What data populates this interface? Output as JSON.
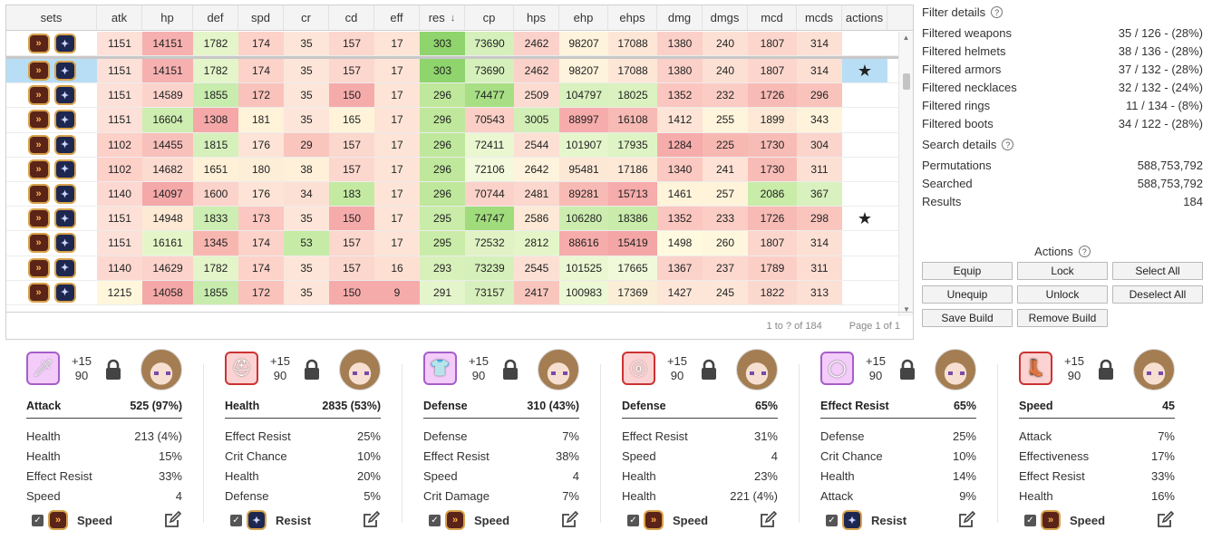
{
  "table": {
    "columns": [
      {
        "key": "sets",
        "label": "sets",
        "w": 100
      },
      {
        "key": "atk",
        "label": "atk",
        "w": 50
      },
      {
        "key": "hp",
        "label": "hp",
        "w": 56
      },
      {
        "key": "def",
        "label": "def",
        "w": 50
      },
      {
        "key": "spd",
        "label": "spd",
        "w": 50
      },
      {
        "key": "cr",
        "label": "cr",
        "w": 50
      },
      {
        "key": "cd",
        "label": "cd",
        "w": 50
      },
      {
        "key": "eff",
        "label": "eff",
        "w": 50
      },
      {
        "key": "res",
        "label": "res",
        "w": 50
      },
      {
        "key": "cp",
        "label": "cp",
        "w": 54
      },
      {
        "key": "hps",
        "label": "hps",
        "w": 50
      },
      {
        "key": "ehp",
        "label": "ehp",
        "w": 54
      },
      {
        "key": "ehps",
        "label": "ehps",
        "w": 54
      },
      {
        "key": "dmg",
        "label": "dmg",
        "w": 50
      },
      {
        "key": "dmgs",
        "label": "dmgs",
        "w": 50
      },
      {
        "key": "mcd",
        "label": "mcd",
        "w": 54
      },
      {
        "key": "mcds",
        "label": "mcds",
        "w": 50
      },
      {
        "key": "actions",
        "label": "actions",
        "w": 50
      }
    ],
    "sort_icon": "sort-down-arrow-icon",
    "rows": [
      {
        "vals": [
          "1151",
          "14151",
          "1782",
          "174",
          "35",
          "157",
          "17",
          "303",
          "73690",
          "2462",
          "98207",
          "17088",
          "1380",
          "240",
          "1807",
          "314"
        ],
        "star": false,
        "selected": false
      },
      {
        "vals": [
          "1151",
          "14151",
          "1782",
          "174",
          "35",
          "157",
          "17",
          "303",
          "73690",
          "2462",
          "98207",
          "17088",
          "1380",
          "240",
          "1807",
          "314"
        ],
        "star": true,
        "selected": true
      },
      {
        "vals": [
          "1151",
          "14589",
          "1855",
          "172",
          "35",
          "150",
          "17",
          "296",
          "74477",
          "2509",
          "104797",
          "18025",
          "1352",
          "232",
          "1726",
          "296"
        ],
        "star": false,
        "selected": false
      },
      {
        "vals": [
          "1151",
          "16604",
          "1308",
          "181",
          "35",
          "165",
          "17",
          "296",
          "70543",
          "3005",
          "88997",
          "16108",
          "1412",
          "255",
          "1899",
          "343"
        ],
        "star": false,
        "selected": false
      },
      {
        "vals": [
          "1102",
          "14455",
          "1815",
          "176",
          "29",
          "157",
          "17",
          "296",
          "72411",
          "2544",
          "101907",
          "17935",
          "1284",
          "225",
          "1730",
          "304"
        ],
        "star": false,
        "selected": false
      },
      {
        "vals": [
          "1102",
          "14682",
          "1651",
          "180",
          "38",
          "157",
          "17",
          "296",
          "72106",
          "2642",
          "95481",
          "17186",
          "1340",
          "241",
          "1730",
          "311"
        ],
        "star": false,
        "selected": false
      },
      {
        "vals": [
          "1140",
          "14097",
          "1600",
          "176",
          "34",
          "183",
          "17",
          "296",
          "70744",
          "2481",
          "89281",
          "15713",
          "1461",
          "257",
          "2086",
          "367"
        ],
        "star": false,
        "selected": false
      },
      {
        "vals": [
          "1151",
          "14948",
          "1833",
          "173",
          "35",
          "150",
          "17",
          "295",
          "74747",
          "2586",
          "106280",
          "18386",
          "1352",
          "233",
          "1726",
          "298"
        ],
        "star": true,
        "selected": false
      },
      {
        "vals": [
          "1151",
          "16161",
          "1345",
          "174",
          "53",
          "157",
          "17",
          "295",
          "72532",
          "2812",
          "88616",
          "15419",
          "1498",
          "260",
          "1807",
          "314"
        ],
        "star": false,
        "selected": false
      },
      {
        "vals": [
          "1140",
          "14629",
          "1782",
          "174",
          "35",
          "157",
          "16",
          "293",
          "73239",
          "2545",
          "101525",
          "17665",
          "1367",
          "237",
          "1789",
          "311"
        ],
        "star": false,
        "selected": false
      },
      {
        "vals": [
          "1215",
          "14058",
          "1855",
          "172",
          "35",
          "150",
          "9",
          "291",
          "73157",
          "2417",
          "100983",
          "17369",
          "1427",
          "245",
          "1822",
          "313"
        ],
        "star": false,
        "selected": false
      }
    ],
    "colors": {
      "atk": [
        "#fde0d8",
        "#fde0d8",
        "#fde0d8",
        "#fde0d8",
        "#fdd0c8",
        "#fdd0c8",
        "#fdd8d0",
        "#fde0d8",
        "#fde0d8",
        "#fdd8d0",
        "#fff6dc"
      ],
      "hp": [
        "#f6b0b0",
        "#f6b0b0",
        "#fcd3cb",
        "#cdeeb0",
        "#f8c0ba",
        "#fcdbd0",
        "#f4a8a8",
        "#fde9d4",
        "#e4f6c8",
        "#fcd3cb",
        "#f4a8a8"
      ],
      "def": [
        "#e3f5c9",
        "#e3f5c9",
        "#c8ecae",
        "#f6a8a8",
        "#d5f0bb",
        "#fff1d8",
        "#fbd3ca",
        "#cdeeb2",
        "#f8b6b0",
        "#e3f5c9",
        "#c8ecae"
      ],
      "spd": [
        "#fcd2c9",
        "#fcd2c9",
        "#f9c2bb",
        "#fff3da",
        "#fde4d6",
        "#fdeed8",
        "#fde4d6",
        "#fbc7c0",
        "#fcd2c9",
        "#fcd2c9",
        "#f9c2bb"
      ],
      "cr": [
        "#fde6d9",
        "#fde6d9",
        "#fde6d9",
        "#fde6d9",
        "#f9c5bd",
        "#fff0da",
        "#fde0d4",
        "#fde6d9",
        "#c6eba6",
        "#fde6d9",
        "#fde6d9"
      ],
      "cd": [
        "#fcd7cd",
        "#fcd7cd",
        "#f6abab",
        "#fff4da",
        "#fcd7cd",
        "#fcd7cd",
        "#c4eaa2",
        "#f6abab",
        "#fcd7cd",
        "#fcd7cd",
        "#f6abab"
      ],
      "eff": [
        "#fde4d6",
        "#fde4d6",
        "#fde4d6",
        "#fde4d6",
        "#fde4d6",
        "#fde4d6",
        "#fde4d6",
        "#fde4d6",
        "#fde4d6",
        "#fde0d2",
        "#f6abab"
      ],
      "res": [
        "#8fd46c",
        "#8fd46c",
        "#bfe89c",
        "#bfe89c",
        "#bfe89c",
        "#bfe89c",
        "#bfe89c",
        "#c9eca8",
        "#c9eca8",
        "#d8f1bb",
        "#e4f5cc"
      ],
      "cp": [
        "#d6f0bb",
        "#d6f0bb",
        "#a8df84",
        "#fbcfc6",
        "#eaf7d1",
        "#f2f9dd",
        "#fbd2c9",
        "#a0dc7c",
        "#e1f3c5",
        "#d6f0bb",
        "#d8f0bd"
      ],
      "hps": [
        "#fbd2ca",
        "#fbd2ca",
        "#fcdbd0",
        "#d2efb6",
        "#fde0d4",
        "#fef3dc",
        "#fbd7cd",
        "#fde9d6",
        "#e4f5c8",
        "#fde0d4",
        "#f9c6be"
      ],
      "ehp": [
        "#fef3dc",
        "#fef3dc",
        "#d9f1be",
        "#f6acab",
        "#e6f6cc",
        "#fde8d6",
        "#f8bab4",
        "#cdedb0",
        "#f6acab",
        "#eaf7d1",
        "#ecf8d4"
      ],
      "ehps": [
        "#fde6d6",
        "#fde6d6",
        "#dbf2c0",
        "#f8bab4",
        "#dff4c4",
        "#fde9d6",
        "#f6acab",
        "#c9ecaa",
        "#f4a6a6",
        "#f0f9d9",
        "#fbeed6"
      ],
      "dmg": [
        "#fbd0c8",
        "#fbd0c8",
        "#fbc6bf",
        "#fde4d6",
        "#f6acab",
        "#fbc9c1",
        "#fff3da",
        "#fbc6bf",
        "#fffadf",
        "#fbd2ca",
        "#fde6d8"
      ],
      "dmgs": [
        "#fde0d4",
        "#fde0d4",
        "#fbccc4",
        "#fff5dc",
        "#f8b8b2",
        "#fde2d5",
        "#fff3da",
        "#fbcdc4",
        "#fef7dd",
        "#fdd8ce",
        "#fde6d8"
      ],
      "mcd": [
        "#fcd6cc",
        "#fcd6cc",
        "#f8bab4",
        "#fde9d6",
        "#f8bcb6",
        "#f8bcb6",
        "#c9eca8",
        "#f8bab4",
        "#fcd6cc",
        "#fbcfc6",
        "#fbd8ce"
      ],
      "mcds": [
        "#fde0d4",
        "#fde0d4",
        "#f9c3bc",
        "#fff4db",
        "#fbd5cc",
        "#fde0d4",
        "#d9f1be",
        "#f9c5bd",
        "#fde0d4",
        "#fdddd2",
        "#fde0d4"
      ]
    },
    "footer_count": "1 to ? of 184",
    "footer_page": "Page 1 of 1"
  },
  "filter_details": {
    "title": "Filter details",
    "items": [
      {
        "label": "Filtered weapons",
        "value": "35 / 126 - (28%)"
      },
      {
        "label": "Filtered helmets",
        "value": "38 / 136 - (28%)"
      },
      {
        "label": "Filtered armors",
        "value": "37 / 132 - (28%)"
      },
      {
        "label": "Filtered necklaces",
        "value": "32 / 132 - (24%)"
      },
      {
        "label": "Filtered rings",
        "value": "11 / 134 - (8%)"
      },
      {
        "label": "Filtered boots",
        "value": "34 / 122 - (28%)"
      }
    ]
  },
  "search_details": {
    "title": "Search details",
    "items": [
      {
        "label": "Permutations",
        "value": "588,753,792"
      },
      {
        "label": "Searched",
        "value": "588,753,792"
      },
      {
        "label": "Results",
        "value": "184"
      }
    ]
  },
  "actions": {
    "title": "Actions",
    "buttons": [
      "Equip",
      "Lock",
      "Select All",
      "Unequip",
      "Unlock",
      "Deselect All",
      "Save Build",
      "Remove Build"
    ]
  },
  "gear": [
    {
      "slot_icon": "sword-icon",
      "frame": "purple",
      "plus": "+15",
      "level": "90",
      "main_label": "Attack",
      "main_value": "525 (97%)",
      "subs": [
        [
          "Health",
          "213 (4%)"
        ],
        [
          "Health",
          "15%"
        ],
        [
          "Effect Resist",
          "33%"
        ],
        [
          "Speed",
          "4"
        ]
      ],
      "set_icon": "speed-set-icon",
      "set": "speed",
      "set_label": "Speed"
    },
    {
      "slot_icon": "helmet-icon",
      "frame": "red",
      "plus": "+15",
      "level": "90",
      "main_label": "Health",
      "main_value": "2835 (53%)",
      "subs": [
        [
          "Effect Resist",
          "25%"
        ],
        [
          "Crit Chance",
          "10%"
        ],
        [
          "Health",
          "20%"
        ],
        [
          "Defense",
          "5%"
        ]
      ],
      "set_icon": "resist-set-icon",
      "set": "resist",
      "set_label": "Resist"
    },
    {
      "slot_icon": "armor-icon",
      "frame": "purple",
      "plus": "+15",
      "level": "90",
      "main_label": "Defense",
      "main_value": "310 (43%)",
      "subs": [
        [
          "Defense",
          "7%"
        ],
        [
          "Effect Resist",
          "38%"
        ],
        [
          "Speed",
          "4"
        ],
        [
          "Crit Damage",
          "7%"
        ]
      ],
      "set_icon": "speed-set-icon",
      "set": "speed",
      "set_label": "Speed"
    },
    {
      "slot_icon": "necklace-icon",
      "frame": "red",
      "plus": "+15",
      "level": "90",
      "main_label": "Defense",
      "main_value": "65%",
      "subs": [
        [
          "Effect Resist",
          "31%"
        ],
        [
          "Speed",
          "4"
        ],
        [
          "Health",
          "23%"
        ],
        [
          "Health",
          "221 (4%)"
        ]
      ],
      "set_icon": "speed-set-icon",
      "set": "speed",
      "set_label": "Speed"
    },
    {
      "slot_icon": "ring-icon",
      "frame": "purple",
      "plus": "+15",
      "level": "90",
      "main_label": "Effect Resist",
      "main_value": "65%",
      "subs": [
        [
          "Defense",
          "25%"
        ],
        [
          "Crit Chance",
          "10%"
        ],
        [
          "Health",
          "14%"
        ],
        [
          "Attack",
          "9%"
        ]
      ],
      "set_icon": "resist-set-icon",
      "set": "resist",
      "set_label": "Resist"
    },
    {
      "slot_icon": "boots-icon",
      "frame": "red",
      "plus": "+15",
      "level": "90",
      "main_label": "Speed",
      "main_value": "45",
      "subs": [
        [
          "Attack",
          "7%"
        ],
        [
          "Effectiveness",
          "17%"
        ],
        [
          "Effect Resist",
          "33%"
        ],
        [
          "Health",
          "16%"
        ]
      ],
      "set_icon": "speed-set-icon",
      "set": "speed",
      "set_label": "Speed"
    }
  ]
}
